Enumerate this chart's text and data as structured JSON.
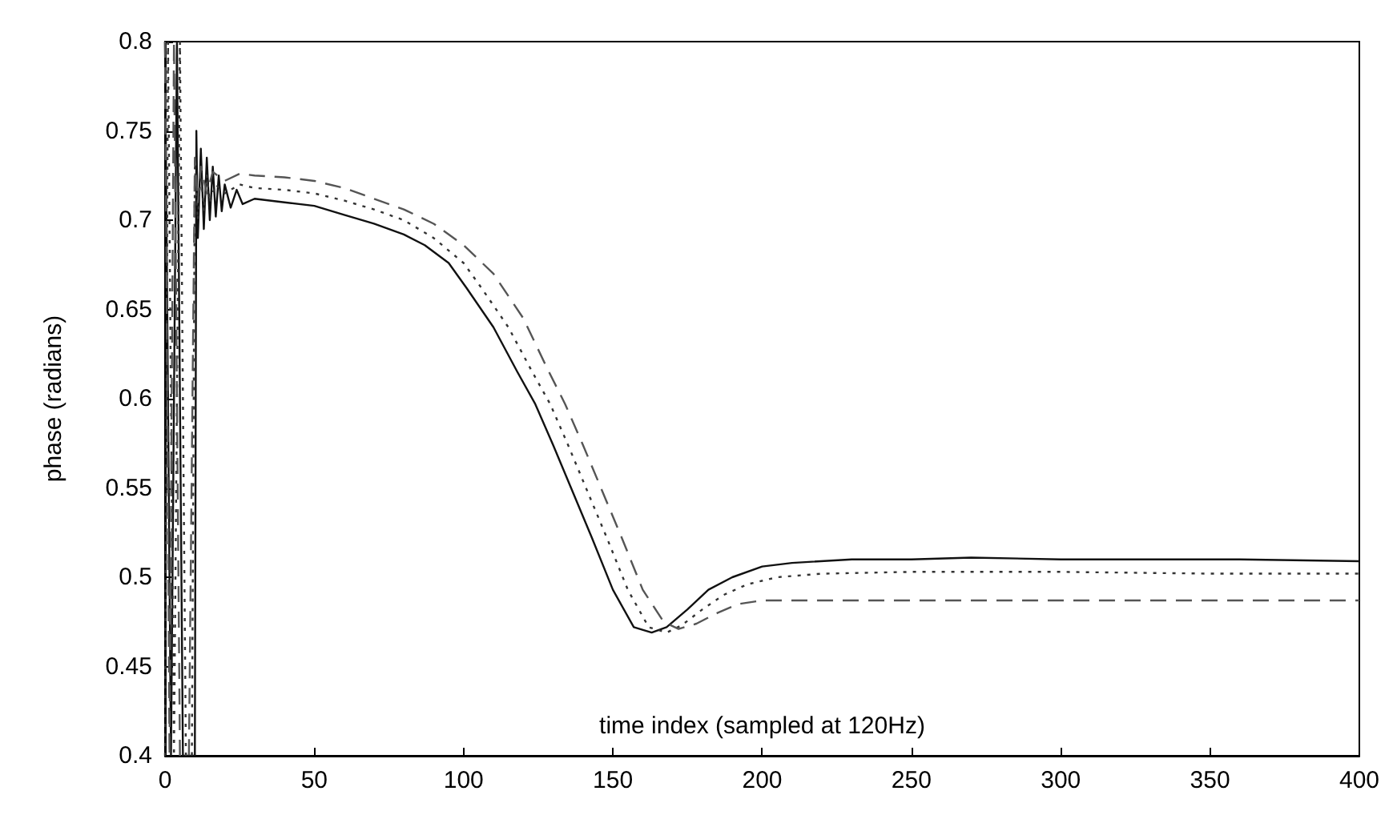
{
  "chart_data": {
    "type": "line",
    "xlabel": "time index (sampled at 120Hz)",
    "ylabel": "phase (radians)",
    "xlim": [
      0,
      400
    ],
    "xticks": [
      0,
      50,
      100,
      150,
      200,
      250,
      300,
      350,
      400
    ],
    "ylim": [
      0.4,
      0.8
    ],
    "yticks": [
      0.4,
      0.45,
      0.5,
      0.55,
      0.6,
      0.65,
      0.7,
      0.75,
      0.8
    ],
    "grid": false,
    "marker": "none",
    "series": [
      {
        "color": "#111111",
        "line_style": "solid",
        "x": [
          0,
          2,
          4,
          6,
          8,
          10,
          10.5,
          11,
          12,
          13,
          14,
          15,
          16,
          17,
          18,
          19,
          20,
          22,
          24,
          26,
          30,
          40,
          50,
          60,
          70,
          80,
          87,
          95,
          101,
          110,
          118,
          124,
          130,
          136,
          143,
          150,
          157,
          163,
          168,
          175,
          182,
          190,
          200,
          210,
          230,
          250,
          270,
          300,
          330,
          360,
          400
        ],
        "values": [
          0.8,
          0.4,
          0.8,
          0.4,
          0.4,
          0.4,
          0.75,
          0.69,
          0.74,
          0.695,
          0.735,
          0.7,
          0.73,
          0.702,
          0.725,
          0.705,
          0.72,
          0.707,
          0.717,
          0.709,
          0.712,
          0.71,
          0.708,
          0.703,
          0.698,
          0.692,
          0.686,
          0.676,
          0.662,
          0.64,
          0.615,
          0.597,
          0.574,
          0.55,
          0.522,
          0.493,
          0.472,
          0.469,
          0.472,
          0.482,
          0.493,
          0.5,
          0.506,
          0.508,
          0.51,
          0.51,
          0.511,
          0.51,
          0.51,
          0.51,
          0.509
        ]
      },
      {
        "color": "#333333",
        "line_style": "dotted",
        "x": [
          0,
          1,
          3,
          5,
          7,
          9,
          10,
          11,
          12,
          13,
          14,
          15,
          17,
          20,
          25,
          30,
          40,
          50,
          60,
          70,
          80,
          90,
          100,
          106,
          115,
          123,
          129,
          135,
          141,
          148,
          155,
          162,
          168,
          173,
          180,
          187,
          195,
          205,
          220,
          250,
          300,
          350,
          400
        ],
        "values": [
          0.4,
          0.8,
          0.4,
          0.8,
          0.4,
          0.4,
          0.73,
          0.7,
          0.728,
          0.705,
          0.725,
          0.71,
          0.72,
          0.715,
          0.72,
          0.718,
          0.717,
          0.715,
          0.711,
          0.706,
          0.7,
          0.69,
          0.676,
          0.662,
          0.64,
          0.615,
          0.597,
          0.574,
          0.55,
          0.522,
          0.493,
          0.472,
          0.469,
          0.473,
          0.482,
          0.49,
          0.496,
          0.5,
          0.502,
          0.503,
          0.503,
          0.502,
          0.502
        ]
      },
      {
        "color": "#555555",
        "line_style": "dashed",
        "x": [
          0,
          1.5,
          3,
          5,
          8,
          10,
          11,
          12,
          14,
          16,
          20,
          25,
          30,
          40,
          50,
          60,
          70,
          80,
          90,
          100,
          110,
          120,
          128,
          134,
          140,
          146,
          153,
          160,
          167,
          172,
          178,
          185,
          192,
          200,
          250,
          300,
          350,
          400
        ],
        "values": [
          0.8,
          0.4,
          0.8,
          0.4,
          0.4,
          0.735,
          0.71,
          0.73,
          0.715,
          0.727,
          0.722,
          0.726,
          0.725,
          0.724,
          0.722,
          0.718,
          0.712,
          0.706,
          0.698,
          0.686,
          0.67,
          0.645,
          0.617,
          0.597,
          0.574,
          0.55,
          0.522,
          0.493,
          0.475,
          0.471,
          0.474,
          0.48,
          0.485,
          0.487,
          0.487,
          0.487,
          0.487,
          0.487
        ]
      }
    ]
  }
}
